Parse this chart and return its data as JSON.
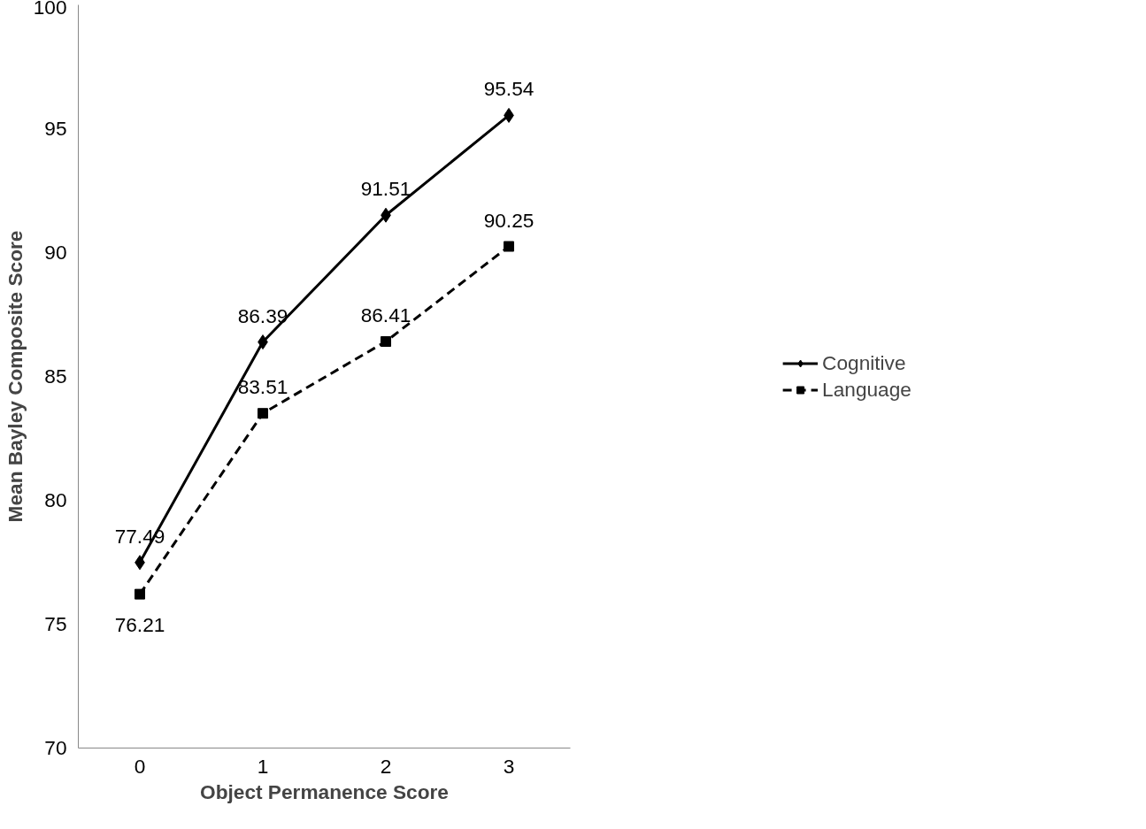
{
  "chart_data": {
    "type": "line",
    "xlabel": "Object Permanence Score",
    "ylabel": "Mean Bayley Composite Score",
    "categories": [
      "0",
      "1",
      "2",
      "3"
    ],
    "series": [
      {
        "name": "Cognitive",
        "color": "#000000",
        "values": [
          77.49,
          86.39,
          91.51,
          95.54
        ],
        "marker": "diamond",
        "line_style": "solid"
      },
      {
        "name": "Language",
        "color": "#000000",
        "values": [
          76.21,
          83.51,
          86.41,
          90.25
        ],
        "marker": "square",
        "line_style": "dashed"
      }
    ],
    "ylim": [
      70,
      100
    ],
    "yticks": [
      70,
      75,
      80,
      85,
      90,
      95,
      100
    ],
    "grid": false,
    "legend": "right",
    "data_labels": true
  }
}
